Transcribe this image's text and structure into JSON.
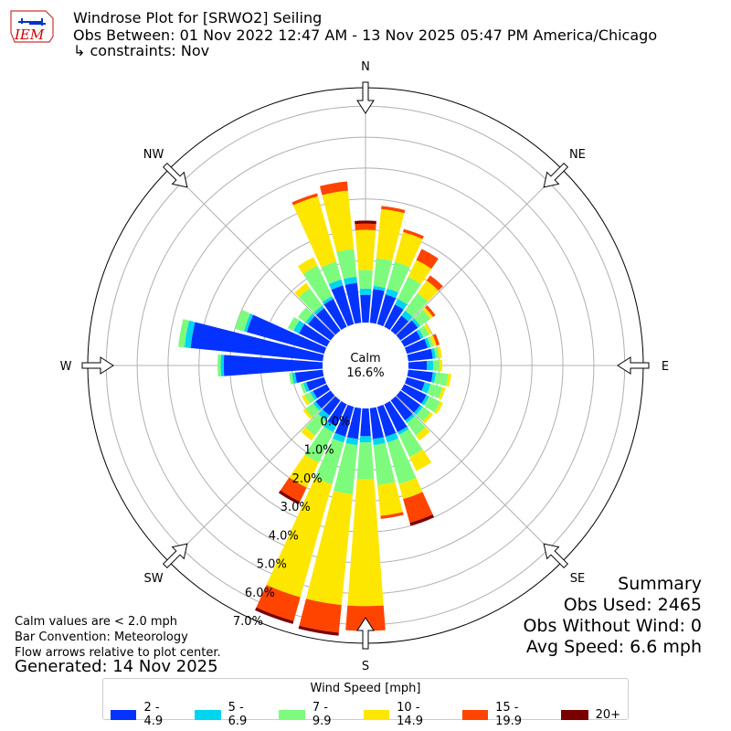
{
  "header": {
    "line1": "Windrose Plot for [SRWO2] Seiling",
    "line2": "Obs Between: 01 Nov 2022 12:47 AM - 13 Nov 2025 05:47 PM America/Chicago",
    "line3": "↳ constraints: Nov"
  },
  "logo": {
    "text": "IEM",
    "color": "#cc0000",
    "map_color": "#0033cc"
  },
  "notes": {
    "line1": "Calm values are < 2.0 mph",
    "line2": "Bar Convention: Meteorology",
    "line3": "Flow arrows relative to plot center.",
    "generated": "Generated: 14 Nov 2025"
  },
  "summary": {
    "title": "Summary",
    "obs_used": "Obs Used: 2465",
    "obs_without_wind": "Obs Without Wind: 0",
    "avg_speed": "Avg Speed: 6.6 mph"
  },
  "chart_data": {
    "type": "windrose",
    "calm_label": "Calm",
    "calm_percent": "16.6%",
    "calm_value": 16.6,
    "cardinal_labels": [
      "N",
      "NE",
      "E",
      "SE",
      "S",
      "SW",
      "W",
      "NW"
    ],
    "radial_tick_labels": [
      "0.0%",
      "1.0%",
      "2.0%",
      "3.0%",
      "4.0%",
      "5.0%",
      "6.0%",
      "7.0%"
    ],
    "radial_max": 7.6,
    "legend_title": "Wind Speed [mph]",
    "speed_bins": [
      {
        "label": "2 - 4.9",
        "color": "#0433ff"
      },
      {
        "label": "5 - 6.9",
        "color": "#00d5f0"
      },
      {
        "label": "7 - 9.9",
        "color": "#7dfb7d"
      },
      {
        "label": "10 - 14.9",
        "color": "#fde700"
      },
      {
        "label": "15 - 19.9",
        "color": "#ff4400"
      },
      {
        "label": "20+",
        "color": "#7a0000"
      }
    ],
    "directions_deg": [
      0,
      10,
      20,
      30,
      40,
      50,
      60,
      70,
      80,
      90,
      100,
      110,
      120,
      130,
      140,
      150,
      160,
      170,
      180,
      190,
      200,
      210,
      220,
      230,
      240,
      250,
      260,
      270,
      280,
      290,
      300,
      310,
      320,
      330,
      340,
      350
    ],
    "cumulative_percent": [
      [
        0.9,
        1.1,
        1.7,
        3.0,
        3.2,
        3.3
      ],
      [
        1.1,
        1.2,
        2.1,
        3.7,
        3.8,
        3.8
      ],
      [
        1.0,
        1.2,
        2.1,
        3.1,
        3.2,
        3.2
      ],
      [
        0.8,
        1.0,
        1.8,
        2.4,
        2.8,
        2.8
      ],
      [
        0.6,
        0.8,
        1.5,
        2.0,
        2.2,
        2.2
      ],
      [
        0.7,
        0.8,
        1.2,
        1.3,
        1.4,
        1.4
      ],
      [
        0.6,
        0.7,
        0.9,
        1.0,
        1.0,
        1.0
      ],
      [
        0.7,
        0.8,
        0.9,
        1.0,
        1.1,
        1.1
      ],
      [
        0.8,
        0.9,
        1.0,
        1.1,
        1.1,
        1.1
      ],
      [
        0.6,
        0.8,
        1.0,
        1.1,
        1.1,
        1.1
      ],
      [
        0.8,
        0.9,
        1.3,
        1.4,
        1.4,
        1.4
      ],
      [
        0.6,
        0.8,
        1.2,
        1.3,
        1.3,
        1.3
      ],
      [
        0.8,
        0.9,
        1.3,
        1.4,
        1.4,
        1.4
      ],
      [
        0.8,
        0.9,
        1.2,
        1.3,
        1.3,
        1.3
      ],
      [
        0.8,
        0.9,
        1.4,
        1.6,
        1.6,
        1.6
      ],
      [
        1.0,
        1.1,
        1.9,
        2.4,
        2.4,
        2.4
      ],
      [
        1.0,
        1.2,
        2.6,
        3.1,
        3.9,
        4.0
      ],
      [
        1.0,
        1.2,
        2.5,
        3.5,
        3.6,
        3.6
      ],
      [
        0.9,
        1.1,
        2.3,
        6.4,
        7.2,
        7.2
      ],
      [
        1.0,
        1.2,
        2.8,
        6.4,
        7.3,
        7.4
      ],
      [
        1.0,
        1.2,
        2.6,
        6.4,
        7.2,
        7.3
      ],
      [
        0.8,
        1.0,
        2.1,
        3.0,
        3.5,
        3.6
      ],
      [
        0.6,
        0.8,
        1.4,
        1.6,
        1.6,
        1.6
      ],
      [
        0.6,
        0.7,
        1.0,
        1.1,
        1.1,
        1.1
      ],
      [
        0.5,
        0.6,
        0.8,
        0.9,
        0.9,
        0.9
      ],
      [
        0.6,
        0.7,
        0.8,
        0.8,
        0.8,
        0.8
      ],
      [
        0.9,
        1.0,
        1.1,
        1.1,
        1.1,
        1.1
      ],
      [
        3.2,
        3.3,
        3.4,
        3.4,
        3.4,
        3.4
      ],
      [
        4.3,
        4.5,
        4.7,
        4.7,
        4.7,
        4.7
      ],
      [
        2.6,
        2.7,
        3.0,
        3.0,
        3.0,
        3.0
      ],
      [
        1.0,
        1.2,
        1.4,
        1.4,
        1.4,
        1.4
      ],
      [
        0.9,
        1.0,
        1.3,
        1.3,
        1.3,
        1.3
      ],
      [
        0.9,
        1.0,
        1.7,
        1.9,
        1.9,
        1.9
      ],
      [
        1.0,
        1.1,
        2.2,
        2.5,
        2.5,
        2.5
      ],
      [
        1.3,
        1.5,
        2.1,
        4.3,
        4.4,
        4.4
      ],
      [
        1.3,
        1.5,
        2.4,
        4.3,
        4.6,
        4.6
      ]
    ]
  }
}
